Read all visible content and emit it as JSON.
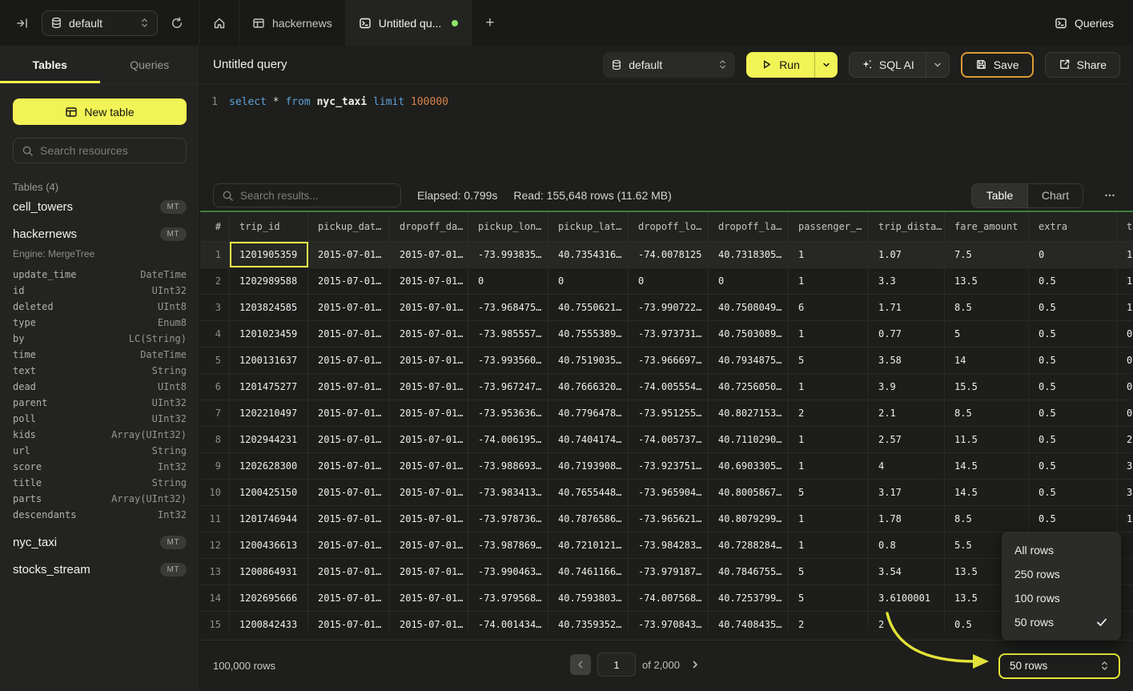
{
  "colors": {
    "accent_yellow": "#f2f356",
    "save_border": "#d99c33",
    "selection_yellow": "#f2f34a",
    "green_result_line": "#3f7f3a",
    "dirty_dot_green": "#8be36a"
  },
  "topbar": {
    "database_selector": "default",
    "tabs": [
      {
        "label": "hackernews",
        "icon": "table-icon",
        "active": false
      },
      {
        "label": "Untitled qu...",
        "icon": "terminal-icon",
        "active": true,
        "dirty": true
      }
    ],
    "queries_label": "Queries"
  },
  "sidebar": {
    "tab_tables": "Tables",
    "tab_queries": "Queries",
    "new_table_label": "New table",
    "search_placeholder": "Search resources",
    "section_label": "Tables (4)",
    "tables": [
      {
        "name": "cell_towers",
        "badge": "MT"
      },
      {
        "name": "hackernews",
        "badge": "MT",
        "engine": "Engine: MergeTree",
        "columns": [
          {
            "name": "update_time",
            "type": "DateTime"
          },
          {
            "name": "id",
            "type": "UInt32"
          },
          {
            "name": "deleted",
            "type": "UInt8"
          },
          {
            "name": "type",
            "type": "Enum8"
          },
          {
            "name": "by",
            "type": "LC(String)"
          },
          {
            "name": "time",
            "type": "DateTime"
          },
          {
            "name": "text",
            "type": "String"
          },
          {
            "name": "dead",
            "type": "UInt8"
          },
          {
            "name": "parent",
            "type": "UInt32"
          },
          {
            "name": "poll",
            "type": "UInt32"
          },
          {
            "name": "kids",
            "type": "Array(UInt32)"
          },
          {
            "name": "url",
            "type": "String"
          },
          {
            "name": "score",
            "type": "Int32"
          },
          {
            "name": "title",
            "type": "String"
          },
          {
            "name": "parts",
            "type": "Array(UInt32)"
          },
          {
            "name": "descendants",
            "type": "Int32"
          }
        ]
      },
      {
        "name": "nyc_taxi",
        "badge": "MT"
      },
      {
        "name": "stocks_stream",
        "badge": "MT"
      }
    ]
  },
  "query": {
    "title": "Untitled query",
    "database_selector": "default",
    "run_label": "Run",
    "sql_ai_label": "SQL AI",
    "save_label": "Save",
    "share_label": "Share",
    "editor": {
      "line_number": "1",
      "sql_text": "select * from nyc_taxi limit 100000",
      "tokens": [
        {
          "t": "select",
          "c": "kw"
        },
        {
          "t": " ",
          "c": "plain"
        },
        {
          "t": "*",
          "c": "plain"
        },
        {
          "t": " ",
          "c": "plain"
        },
        {
          "t": "from",
          "c": "kw"
        },
        {
          "t": " ",
          "c": "plain"
        },
        {
          "t": "nyc_taxi",
          "c": "ident"
        },
        {
          "t": " ",
          "c": "plain"
        },
        {
          "t": "limit",
          "c": "kw"
        },
        {
          "t": " ",
          "c": "plain"
        },
        {
          "t": "100000",
          "c": "num"
        }
      ]
    }
  },
  "results": {
    "search_placeholder": "Search results...",
    "elapsed": "Elapsed: 0.799s",
    "read": "Read: 155,648 rows (11.62 MB)",
    "view_tabs": [
      {
        "label": "Table",
        "active": true
      },
      {
        "label": "Chart",
        "active": false
      }
    ]
  },
  "table": {
    "columns": [
      "#",
      "trip_id",
      "pickup_dat…",
      "dropoff_da…",
      "pickup_lon…",
      "pickup_lat…",
      "dropoff_lo…",
      "dropoff_la…",
      "passenger_…",
      "trip_dista…",
      "fare_amount",
      "extra",
      "t"
    ],
    "selected_cell": {
      "row": "1",
      "column": "trip_id",
      "value": "1201905359"
    },
    "rows": [
      [
        "1",
        "1201905359",
        "2015-07-01…",
        "2015-07-01…",
        "-73.993835…",
        "40.7354316…",
        "-74.0078125",
        "40.7318305…",
        "1",
        "1.07",
        "7.5",
        "0",
        "1"
      ],
      [
        "2",
        "1202989588",
        "2015-07-01…",
        "2015-07-01…",
        "0",
        "0",
        "0",
        "0",
        "1",
        "3.3",
        "13.5",
        "0.5",
        "1"
      ],
      [
        "3",
        "1203824585",
        "2015-07-01…",
        "2015-07-01…",
        "-73.968475…",
        "40.7550621…",
        "-73.990722…",
        "40.7508049…",
        "6",
        "1.71",
        "8.5",
        "0.5",
        "1"
      ],
      [
        "4",
        "1201023459",
        "2015-07-01…",
        "2015-07-01…",
        "-73.985557…",
        "40.7555389…",
        "-73.973731…",
        "40.7503089…",
        "1",
        "0.77",
        "5",
        "0.5",
        "0"
      ],
      [
        "5",
        "1200131637",
        "2015-07-01…",
        "2015-07-01…",
        "-73.993560…",
        "40.7519035…",
        "-73.966697…",
        "40.7934875…",
        "5",
        "3.58",
        "14",
        "0.5",
        "0"
      ],
      [
        "6",
        "1201475277",
        "2015-07-01…",
        "2015-07-01…",
        "-73.967247…",
        "40.7666320…",
        "-74.005554…",
        "40.7256050…",
        "1",
        "3.9",
        "15.5",
        "0.5",
        "0"
      ],
      [
        "7",
        "1202210497",
        "2015-07-01…",
        "2015-07-01…",
        "-73.953636…",
        "40.7796478…",
        "-73.951255…",
        "40.8027153…",
        "2",
        "2.1",
        "8.5",
        "0.5",
        "0"
      ],
      [
        "8",
        "1202944231",
        "2015-07-01…",
        "2015-07-01…",
        "-74.006195…",
        "40.7404174…",
        "-74.005737…",
        "40.7110290…",
        "1",
        "2.57",
        "11.5",
        "0.5",
        "2"
      ],
      [
        "9",
        "1202628300",
        "2015-07-01…",
        "2015-07-01…",
        "-73.988693…",
        "40.7193908…",
        "-73.923751…",
        "40.6903305…",
        "1",
        "4",
        "14.5",
        "0.5",
        "3"
      ],
      [
        "10",
        "1200425150",
        "2015-07-01…",
        "2015-07-01…",
        "-73.983413…",
        "40.7655448…",
        "-73.965904…",
        "40.8005867…",
        "5",
        "3.17",
        "14.5",
        "0.5",
        "3"
      ],
      [
        "11",
        "1201746944",
        "2015-07-01…",
        "2015-07-01…",
        "-73.978736…",
        "40.7876586…",
        "-73.965621…",
        "40.8079299…",
        "1",
        "1.78",
        "8.5",
        "0.5",
        "1"
      ],
      [
        "12",
        "1200436613",
        "2015-07-01…",
        "2015-07-01…",
        "-73.987869…",
        "40.7210121…",
        "-73.984283…",
        "40.7288284…",
        "1",
        "0.8",
        "5.5",
        "",
        ""
      ],
      [
        "13",
        "1200864931",
        "2015-07-01…",
        "2015-07-01…",
        "-73.990463…",
        "40.7461166…",
        "-73.979187…",
        "40.7846755…",
        "5",
        "3.54",
        "13.5",
        "",
        ""
      ],
      [
        "14",
        "1202695666",
        "2015-07-01…",
        "2015-07-01…",
        "-73.979568…",
        "40.7593803…",
        "-74.007568…",
        "40.7253799…",
        "5",
        "3.6100001",
        "13.5",
        "",
        ""
      ],
      [
        "15",
        "1200842433",
        "2015-07-01…",
        "2015-07-01…",
        "-74.001434…",
        "40.7359352…",
        "-73.970843…",
        "40.7408435…",
        "2",
        "2",
        "0.5",
        "",
        ""
      ]
    ]
  },
  "footer": {
    "total_rows": "100,000 rows",
    "page_value": "1",
    "page_of": "of 2,000",
    "page_size_value": "50 rows"
  },
  "page_size_menu": {
    "options": [
      {
        "label": "All rows",
        "selected": false
      },
      {
        "label": "250 rows",
        "selected": false
      },
      {
        "label": "100 rows",
        "selected": false
      },
      {
        "label": "50 rows",
        "selected": true
      }
    ]
  }
}
